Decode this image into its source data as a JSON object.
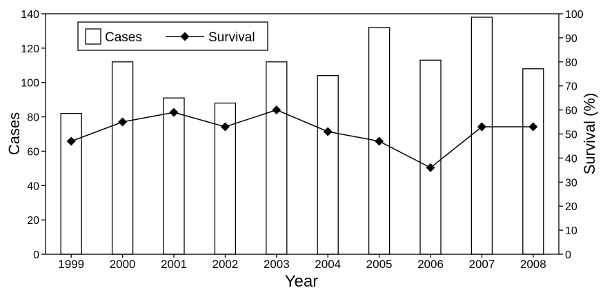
{
  "chart_data": {
    "type": "bar",
    "xlabel": "Year",
    "ylabel_left": "Cases",
    "ylabel_right": "Survival (%)",
    "categories": [
      "1999",
      "2000",
      "2001",
      "2002",
      "2003",
      "2004",
      "2005",
      "2006",
      "2007",
      "2008"
    ],
    "y_left_lim": [
      0,
      140
    ],
    "y_left_ticks": [
      "0",
      "20",
      "40",
      "60",
      "80",
      "100",
      "120",
      "140"
    ],
    "y_right_lim": [
      0,
      100
    ],
    "y_right_ticks": [
      "0",
      "10",
      "20",
      "30",
      "40",
      "50",
      "60",
      "70",
      "80",
      "90",
      "100"
    ],
    "grid": false,
    "legend_position": "top-left",
    "series": [
      {
        "name": "Cases",
        "type": "bar",
        "axis": "left",
        "color": "#ffffff",
        "edge_color": "#000000",
        "values": [
          82,
          112,
          91,
          88,
          112,
          104,
          132,
          113,
          138,
          108
        ]
      },
      {
        "name": "Survival",
        "type": "line",
        "axis": "right",
        "marker": "diamond",
        "color": "#000000",
        "values": [
          47,
          55,
          59,
          53,
          60,
          51,
          47,
          36,
          53,
          53
        ]
      }
    ]
  }
}
